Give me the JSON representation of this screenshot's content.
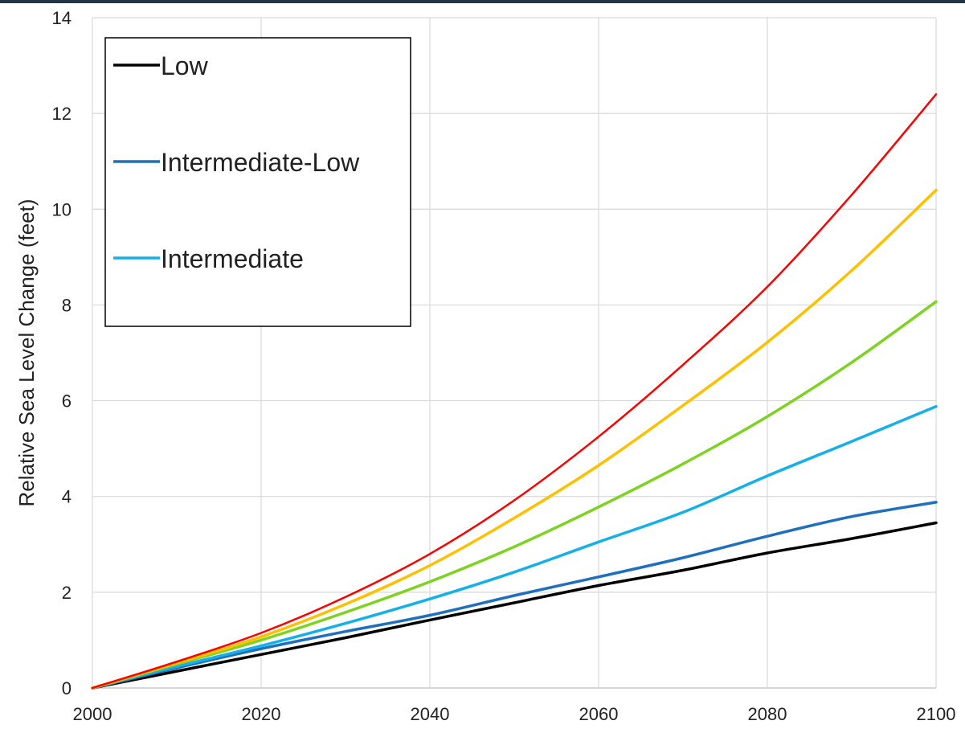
{
  "chart_data": {
    "type": "line",
    "title": "",
    "xlabel": "",
    "ylabel": "Relative Sea Level Change (feet)",
    "xlim": [
      2000,
      2100
    ],
    "ylim": [
      0,
      14
    ],
    "x_ticks": [
      2000,
      2020,
      2040,
      2060,
      2080,
      2100
    ],
    "y_ticks": [
      0,
      2,
      4,
      6,
      8,
      10,
      12,
      14
    ],
    "grid": true,
    "legend_position": "top-left",
    "x": [
      2000,
      2010,
      2020,
      2030,
      2040,
      2050,
      2060,
      2070,
      2080,
      2090,
      2100
    ],
    "series": [
      {
        "name": "Low",
        "color": "#000000",
        "values": [
          0,
          0.35,
          0.7,
          1.05,
          1.42,
          1.78,
          2.14,
          2.46,
          2.82,
          3.12,
          3.45
        ]
      },
      {
        "name": "Intermediate-Low",
        "color": "#1f6fbf",
        "values": [
          0,
          0.42,
          0.82,
          1.18,
          1.52,
          1.93,
          2.32,
          2.72,
          3.17,
          3.58,
          3.88
        ]
      },
      {
        "name": "Intermediate",
        "color": "#14b0e8",
        "values": [
          0,
          0.45,
          0.88,
          1.35,
          1.86,
          2.42,
          3.05,
          3.67,
          4.43,
          5.15,
          5.88
        ]
      },
      {
        "color": "#7ed321",
        "values": [
          0,
          0.5,
          1.0,
          1.58,
          2.22,
          2.95,
          3.78,
          4.68,
          5.67,
          6.8,
          8.07
        ]
      },
      {
        "color": "#ffc000",
        "values": [
          0,
          0.52,
          1.07,
          1.75,
          2.56,
          3.55,
          4.65,
          5.9,
          7.22,
          8.72,
          10.4
        ]
      },
      {
        "color": "#ff0000",
        "values": [
          0,
          0.55,
          1.15,
          1.9,
          2.8,
          3.92,
          5.25,
          6.75,
          8.38,
          10.3,
          12.4
        ]
      }
    ]
  }
}
